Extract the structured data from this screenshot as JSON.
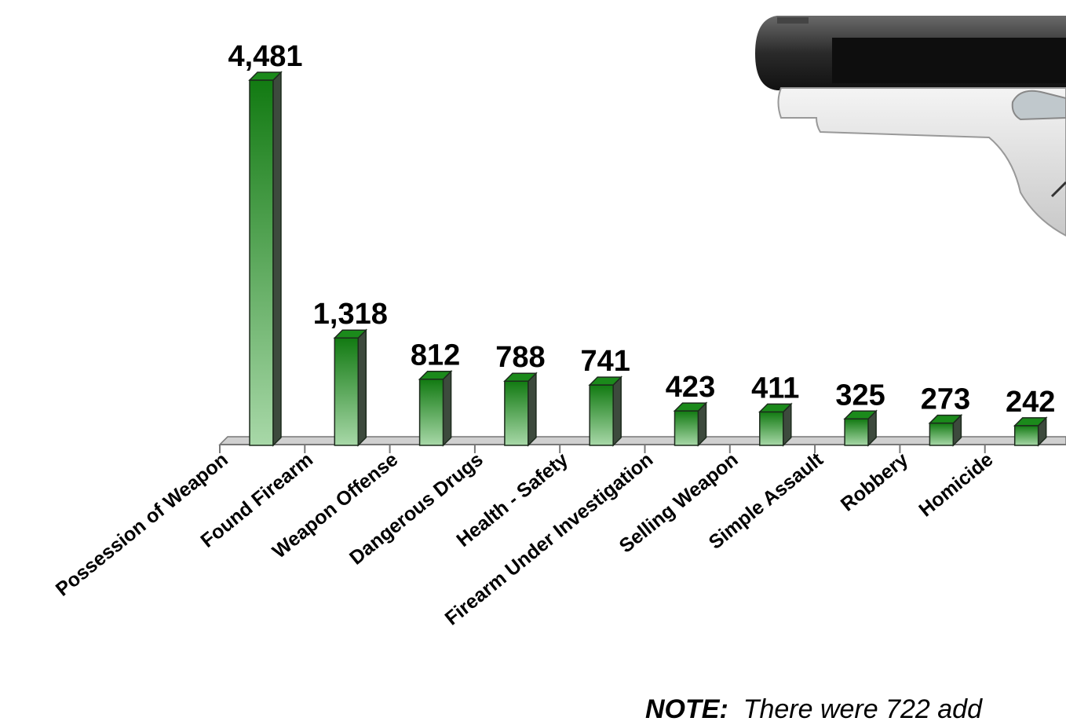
{
  "chart_data": {
    "type": "bar",
    "categories": [
      "Possession of Weapon",
      "Found Firearm",
      "Weapon Offense",
      "Dangerous Drugs",
      "Health - Safety",
      "Firearm Under Investigation",
      "Selling Weapon",
      "Simple Assault",
      "Robbery",
      "Homicide"
    ],
    "values": [
      4481,
      1318,
      812,
      788,
      741,
      423,
      411,
      325,
      273,
      242
    ],
    "value_labels": [
      "4,481",
      "1,318",
      "812",
      "788",
      "741",
      "423",
      "411",
      "325",
      "273",
      "242"
    ],
    "ylim": [
      0,
      4481
    ],
    "grid": false,
    "legend": "none",
    "colors": {
      "bar_top": "#127a12",
      "bar_bottom": "#a8d8a8",
      "bar_side": "#3d4a3d",
      "floor": "#777777"
    }
  },
  "note": {
    "lead": "NOTE:",
    "text": "There were 722 add"
  },
  "image": {
    "icon": "pistol-icon"
  }
}
